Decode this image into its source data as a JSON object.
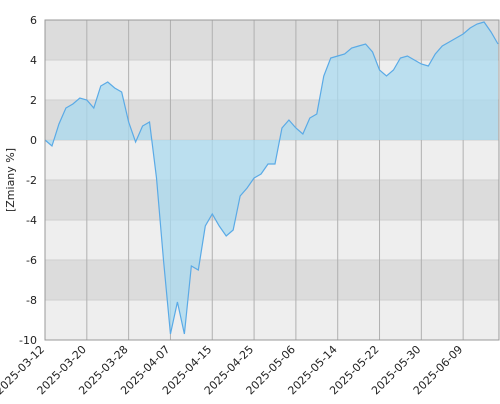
{
  "chart_data": {
    "type": "area",
    "y_label": "[Zmiany %]",
    "categories": [
      "2025-03-12",
      null,
      null,
      null,
      null,
      null,
      "2025-03-20",
      null,
      null,
      null,
      null,
      null,
      "2025-03-28",
      null,
      null,
      null,
      null,
      null,
      "2025-04-07",
      null,
      null,
      null,
      null,
      null,
      "2025-04-15",
      null,
      null,
      null,
      null,
      null,
      "2025-04-25",
      null,
      null,
      null,
      null,
      null,
      "2025-05-06",
      null,
      null,
      null,
      null,
      null,
      "2025-05-14",
      null,
      null,
      null,
      null,
      null,
      "2025-05-22",
      null,
      null,
      null,
      null,
      null,
      "2025-05-30",
      null,
      null,
      null,
      null,
      null,
      "2025-06-09",
      null,
      null,
      null,
      null,
      null
    ],
    "values": [
      0,
      -0.3,
      0.8,
      1.6,
      1.8,
      2.1,
      2.0,
      1.6,
      2.7,
      2.9,
      2.6,
      2.4,
      0.9,
      -0.1,
      0.7,
      0.9,
      -1.9,
      -6.0,
      -9.7,
      -8.1,
      -9.7,
      -6.3,
      -6.5,
      -4.3,
      -3.7,
      -4.3,
      -4.8,
      -4.5,
      -2.8,
      -2.4,
      -1.9,
      -1.7,
      -1.2,
      -1.2,
      0.6,
      1.0,
      0.6,
      0.3,
      1.1,
      1.3,
      3.2,
      4.1,
      4.2,
      4.3,
      4.6,
      4.7,
      4.8,
      4.4,
      3.5,
      3.2,
      3.5,
      4.1,
      4.2,
      4.0,
      3.8,
      3.7,
      4.3,
      4.7,
      4.9,
      5.1,
      5.3,
      5.6,
      5.8,
      5.9,
      5.4,
      4.8
    ],
    "color": "#5aaae6",
    "fill": "#a9d9ef",
    "ylim": [
      -10,
      6
    ],
    "yticks": [
      -10,
      -8,
      -6,
      -4,
      -2,
      0,
      2,
      4,
      6
    ],
    "grid": true
  }
}
